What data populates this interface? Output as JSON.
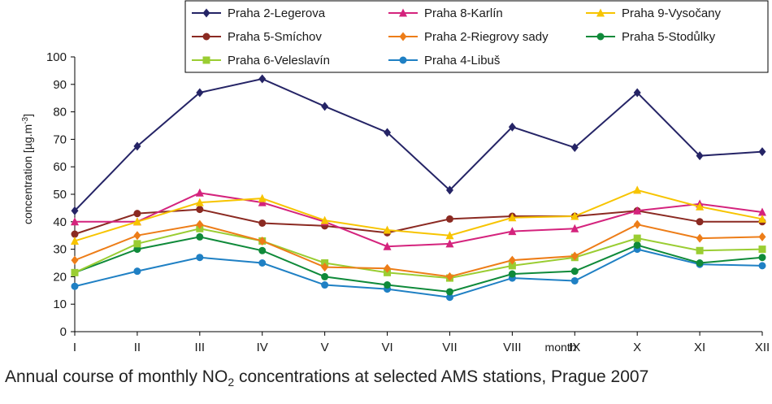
{
  "chart_data": {
    "type": "line",
    "categories": [
      "I",
      "II",
      "III",
      "IV",
      "V",
      "VI",
      "VII",
      "VIII",
      "IX",
      "X",
      "XI",
      "XII"
    ],
    "xlabel": "month",
    "ylabel": {
      "prefix": "concentration [µg.m",
      "sup": "-3",
      "suffix": "]"
    },
    "ylim": [
      0,
      100
    ],
    "yticks": [
      0,
      10,
      20,
      30,
      40,
      50,
      60,
      70,
      80,
      90,
      100
    ],
    "grid": false,
    "legend_position": "top",
    "series": [
      {
        "name": "Praha 2-Legerova",
        "color": "#252466",
        "marker": "diamond",
        "values": [
          44,
          67.5,
          87,
          92,
          82,
          72.5,
          51.5,
          74.5,
          67,
          87,
          64,
          65.5
        ]
      },
      {
        "name": "Praha 8-Karlín",
        "color": "#d4237d",
        "marker": "triangle",
        "values": [
          40,
          40,
          50.5,
          47,
          40,
          31,
          32,
          36.5,
          37.5,
          44,
          46.5,
          43.5
        ]
      },
      {
        "name": "Praha 9-Vysočany",
        "color": "#f7c400",
        "marker": "triangle",
        "values": [
          33,
          40,
          47,
          48.5,
          40.5,
          37,
          35,
          41.5,
          42,
          51.5,
          45.5,
          41
        ]
      },
      {
        "name": "Praha 5-Smíchov",
        "color": "#8b2a22",
        "marker": "circle",
        "values": [
          35.5,
          43,
          44.5,
          39.5,
          38.5,
          36,
          41,
          42,
          42,
          44,
          40,
          40
        ]
      },
      {
        "name": "Praha 2-Riegrovy sady",
        "color": "#ed7d18",
        "marker": "diamond",
        "values": [
          26,
          35,
          39,
          33,
          23.5,
          23,
          20,
          26,
          27.5,
          39,
          34,
          34.5
        ]
      },
      {
        "name": "Praha 5-Stodůlky",
        "color": "#0f8a3a",
        "marker": "circle",
        "values": [
          21.5,
          30,
          34.5,
          29.5,
          20,
          17,
          14.5,
          21,
          22,
          31.5,
          25,
          27
        ]
      },
      {
        "name": "Praha 6-Veleslavín",
        "color": "#9acd32",
        "marker": "square",
        "values": [
          21.5,
          32,
          37.5,
          33,
          25,
          21.5,
          19.5,
          24,
          27,
          34,
          29.5,
          30
        ]
      },
      {
        "name": "Praha 4-Libuš",
        "color": "#1f80c4",
        "marker": "circle",
        "values": [
          16.5,
          22,
          27,
          25,
          17,
          15.5,
          12.5,
          19.5,
          18.5,
          30,
          24.5,
          24
        ]
      }
    ]
  },
  "caption": {
    "prefix": "Annual course of monthly NO",
    "sub": "2",
    "suffix": " concentrations at selected AMS stations, Prague 2007"
  }
}
